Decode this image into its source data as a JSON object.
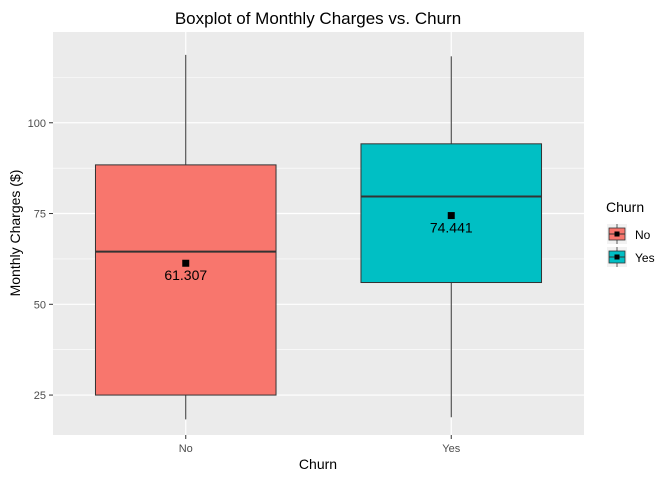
{
  "chart_data": {
    "type": "boxplot",
    "title": "Boxplot of Monthly Charges vs. Churn",
    "xlabel": "Churn",
    "ylabel": "Monthly Charges ($)",
    "ylim": [
      14,
      125
    ],
    "yticks": [
      25,
      50,
      75,
      100
    ],
    "categories": [
      "No",
      "Yes"
    ],
    "boxes": [
      {
        "category": "No",
        "whisker_low": 18.3,
        "q1": 25.0,
        "median": 64.5,
        "q3": 88.4,
        "whisker_high": 118.7,
        "mean": 61.307,
        "mean_label": "61.307",
        "color": "#F8766D"
      },
      {
        "category": "Yes",
        "whisker_low": 18.9,
        "q1": 56.0,
        "median": 79.7,
        "q3": 94.2,
        "whisker_high": 118.3,
        "mean": 74.441,
        "mean_label": "74.441",
        "color": "#00BFC4"
      }
    ],
    "legend": {
      "title": "Churn",
      "position": "right",
      "items": [
        {
          "label": "No",
          "color": "#F8766D"
        },
        {
          "label": "Yes",
          "color": "#00BFC4"
        }
      ]
    },
    "grid": true,
    "panel_background": "#EBEBEB",
    "grid_color": "#FFFFFF"
  }
}
